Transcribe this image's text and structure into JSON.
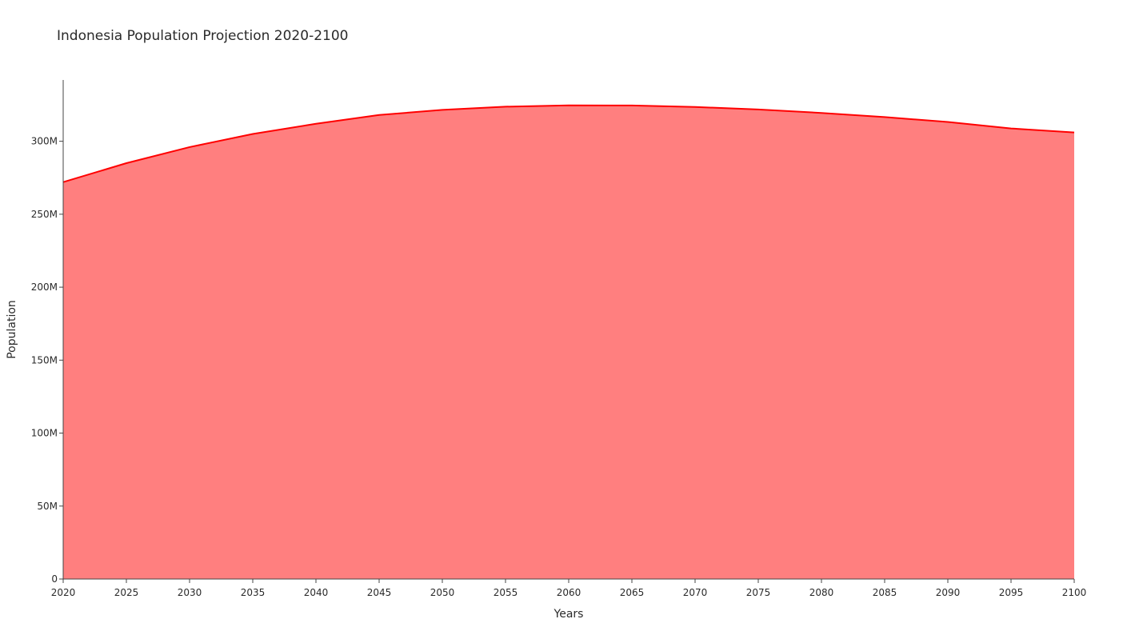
{
  "chart_data": {
    "type": "area",
    "title": "Indonesia Population Projection 2020-2100",
    "xlabel": "Years",
    "ylabel": "Population",
    "x": [
      2020,
      2025,
      2030,
      2035,
      2040,
      2045,
      2050,
      2055,
      2060,
      2065,
      2070,
      2075,
      2080,
      2085,
      2090,
      2095,
      2100
    ],
    "series": [
      {
        "values": [
          272000000,
          285000000,
          296000000,
          305000000,
          312000000,
          318000000,
          321500000,
          323700000,
          324600000,
          324500000,
          323500000,
          321800000,
          319400000,
          316600000,
          313200000,
          308800000,
          306000000
        ],
        "line_color": "#ff0000",
        "fill_color": "#ff7f7f"
      }
    ],
    "xlim": [
      2020,
      2100
    ],
    "ylim": [
      0,
      342000000
    ],
    "x_ticks": [
      "2020",
      "2025",
      "2030",
      "2035",
      "2040",
      "2045",
      "2050",
      "2055",
      "2060",
      "2065",
      "2070",
      "2075",
      "2080",
      "2085",
      "2090",
      "2095",
      "2100"
    ],
    "y_ticks": [
      {
        "value": 0,
        "label": "0"
      },
      {
        "value": 50000000,
        "label": "50M"
      },
      {
        "value": 100000000,
        "label": "100M"
      },
      {
        "value": 150000000,
        "label": "150M"
      },
      {
        "value": 200000000,
        "label": "200M"
      },
      {
        "value": 250000000,
        "label": "250M"
      },
      {
        "value": 300000000,
        "label": "300M"
      }
    ],
    "grid": false,
    "legend": "none"
  }
}
